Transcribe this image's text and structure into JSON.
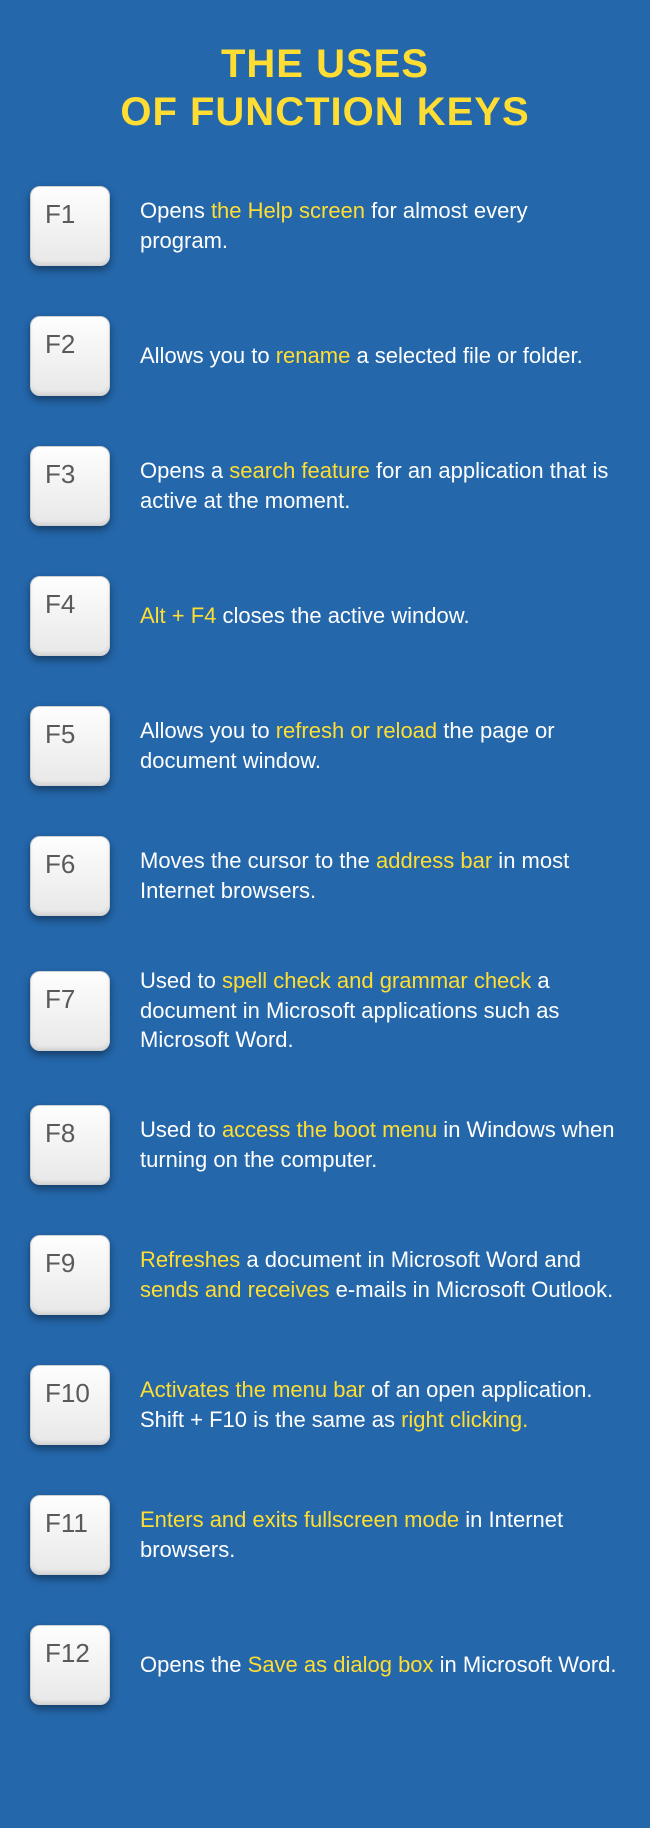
{
  "type": "infographic",
  "background_color": "#2467ab",
  "text_color": "#ffffff",
  "highlight_color": "#ffdd33",
  "key_bg_light": "#fefefe",
  "key_bg_dark": "#e8e8e8",
  "key_text_color": "#5a5a5a",
  "title_line1": "THE USES",
  "title_line2": "OF FUNCTION KEYS",
  "title_fontsize": 40,
  "desc_fontsize": 22,
  "key_fontsize": 26,
  "keys": [
    {
      "label": "F1",
      "parts": [
        {
          "t": "Opens ",
          "hl": false
        },
        {
          "t": "the Help screen",
          "hl": true
        },
        {
          "t": " for almost every program.",
          "hl": false
        }
      ]
    },
    {
      "label": "F2",
      "parts": [
        {
          "t": "Allows you to ",
          "hl": false
        },
        {
          "t": "rename",
          "hl": true
        },
        {
          "t": " a selected file or folder.",
          "hl": false
        }
      ]
    },
    {
      "label": "F3",
      "parts": [
        {
          "t": "Opens a ",
          "hl": false
        },
        {
          "t": "search feature",
          "hl": true
        },
        {
          "t": " for an application that is active at the moment.",
          "hl": false
        }
      ]
    },
    {
      "label": "F4",
      "parts": [
        {
          "t": "Alt + F4",
          "hl": true
        },
        {
          "t": " closes the active window.",
          "hl": false
        }
      ]
    },
    {
      "label": "F5",
      "parts": [
        {
          "t": "Allows you to ",
          "hl": false
        },
        {
          "t": "refresh or reload",
          "hl": true
        },
        {
          "t": " the page or document window.",
          "hl": false
        }
      ]
    },
    {
      "label": "F6",
      "parts": [
        {
          "t": "Moves the cursor to the ",
          "hl": false
        },
        {
          "t": "address bar",
          "hl": true
        },
        {
          "t": " in most Internet browsers.",
          "hl": false
        }
      ]
    },
    {
      "label": "F7",
      "parts": [
        {
          "t": "Used to ",
          "hl": false
        },
        {
          "t": "spell check and grammar check",
          "hl": true
        },
        {
          "t": " a document in Microsoft applications such as Microsoft Word.",
          "hl": false
        }
      ]
    },
    {
      "label": "F8",
      "parts": [
        {
          "t": "Used to ",
          "hl": false
        },
        {
          "t": "access the boot menu",
          "hl": true
        },
        {
          "t": " in Windows when turning on the computer.",
          "hl": false
        }
      ]
    },
    {
      "label": "F9",
      "parts": [
        {
          "t": "Refreshes",
          "hl": true
        },
        {
          "t": " a document in Microsoft Word and ",
          "hl": false
        },
        {
          "t": "sends and receives",
          "hl": true
        },
        {
          "t": " e-mails in Microsoft Outlook.",
          "hl": false
        }
      ]
    },
    {
      "label": "F10",
      "parts": [
        {
          "t": "Activates the menu bar",
          "hl": true
        },
        {
          "t": " of an open application. Shift + F10 is the same as ",
          "hl": false
        },
        {
          "t": "right clicking.",
          "hl": true
        }
      ]
    },
    {
      "label": "F11",
      "parts": [
        {
          "t": "Enters and exits fullscreen mode",
          "hl": true
        },
        {
          "t": " in Internet browsers.",
          "hl": false
        }
      ]
    },
    {
      "label": "F12",
      "parts": [
        {
          "t": "Opens the ",
          "hl": false
        },
        {
          "t": "Save as dialog box",
          "hl": true
        },
        {
          "t": " in Microsoft Word.",
          "hl": false
        }
      ]
    }
  ]
}
